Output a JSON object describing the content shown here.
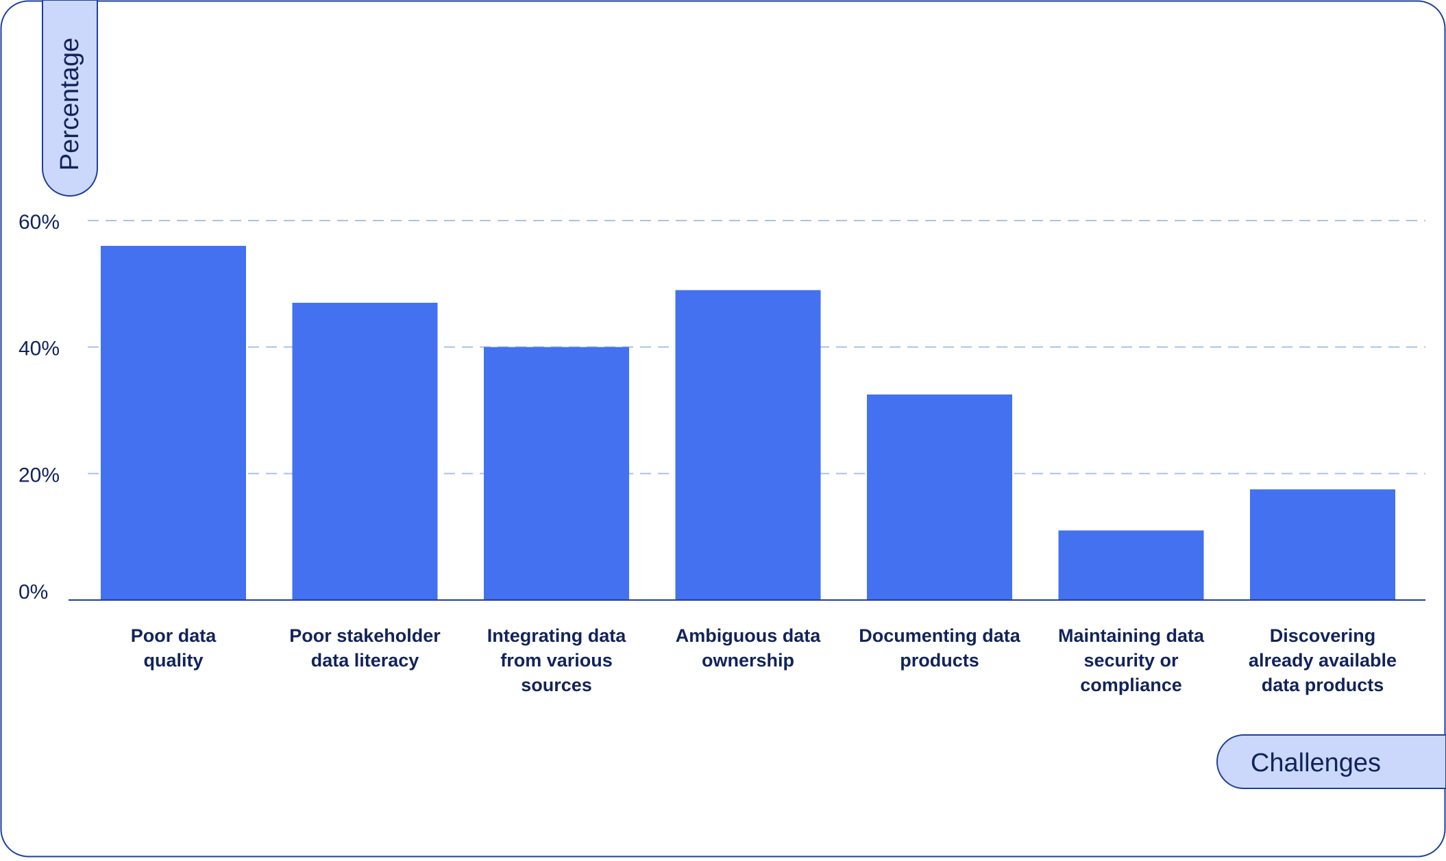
{
  "chart_data": {
    "type": "bar",
    "ylabel": "Percentage",
    "xlabel": "Challenges",
    "ylim": [
      0,
      60
    ],
    "y_ticks": [
      0,
      20,
      40,
      60
    ],
    "y_tick_labels": [
      "0%",
      "20%",
      "40%",
      "60%"
    ],
    "grid": true,
    "categories": [
      [
        "Poor data",
        "quality"
      ],
      [
        "Poor stakeholder",
        "data literacy"
      ],
      [
        "Integrating data",
        "from various",
        "sources"
      ],
      [
        "Ambiguous data",
        "ownership"
      ],
      [
        "Documenting data",
        "products"
      ],
      [
        "Maintaining data",
        "security or",
        "compliance"
      ],
      [
        "Discovering",
        "already available",
        "data products"
      ]
    ],
    "values": [
      56,
      47,
      40,
      49,
      32.5,
      11,
      17.5
    ],
    "colors": {
      "bar": "#4371F0",
      "text": "#12235A",
      "border": "#1E3F9A",
      "label_bg": "#CBD8FB",
      "grid": "#A9C0EE"
    }
  }
}
